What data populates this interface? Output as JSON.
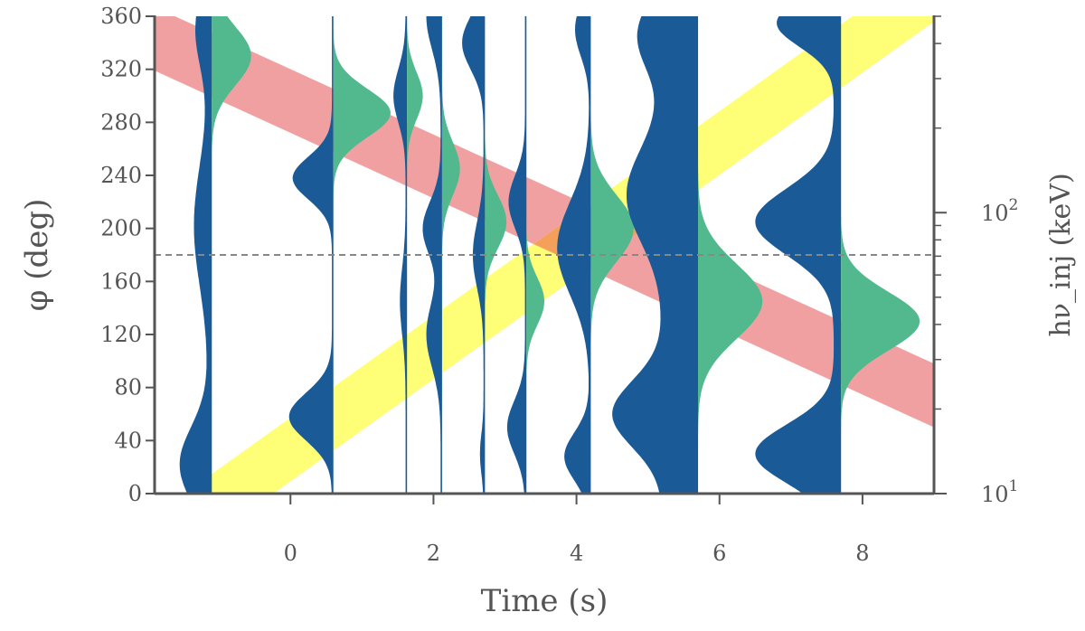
{
  "chart_data": {
    "type": "violin",
    "xlabel": "Time (s)",
    "ylabel_left": "φ (deg)",
    "ylabel_right": "hν_inj (keV)",
    "xlim": [
      -1.9,
      9.0
    ],
    "ylim": [
      0,
      360
    ],
    "x_ticks": [
      0,
      2,
      4,
      6,
      8
    ],
    "y_ticks": [
      0,
      40,
      80,
      120,
      160,
      200,
      240,
      280,
      320,
      360
    ],
    "right_axis": {
      "scale": "log",
      "lim": [
        10,
        500
      ],
      "major_ticks": [
        {
          "value": 10,
          "label": "10",
          "exp": "1"
        },
        {
          "value": 100,
          "label": "10",
          "exp": "2"
        }
      ],
      "minor_ticks": [
        20,
        30,
        40,
        50,
        60,
        70,
        80,
        90,
        200,
        300,
        400,
        500
      ]
    },
    "reference_line_y": 180,
    "colors": {
      "blue": "#1a5a96",
      "green": "#52b98f",
      "red_band": "#f0a0a0",
      "yellow_band": "#ffff77",
      "overlap": "#f5a05a",
      "axis": "#555555",
      "refline": "#888888"
    },
    "bands": [
      {
        "name": "red",
        "x": [
          -1.9,
          9.0
        ],
        "y_center": [
          343,
          74
        ],
        "width": 48
      },
      {
        "name": "yellow",
        "x": [
          -1.9,
          9.0
        ],
        "y_center": [
          -40,
          380
        ],
        "width": 48
      }
    ],
    "time_bins": [
      {
        "x_split": -1.1,
        "blue_peaks": [
          {
            "y": 22,
            "w": 0.4,
            "s": 28
          },
          {
            "y": 202,
            "w": 0.2,
            "s": 45
          },
          {
            "y": 350,
            "w": 0.18,
            "s": 28
          }
        ],
        "blue_base": 0.05,
        "green_peaks": [
          {
            "y": 330,
            "w": 0.55,
            "s": 22
          }
        ]
      },
      {
        "x_split": 0.6,
        "blue_peaks": [
          {
            "y": 238,
            "w": 0.55,
            "s": 16
          },
          {
            "y": 58,
            "w": 0.6,
            "s": 18
          }
        ],
        "blue_base": 0.02,
        "green_peaks": [
          {
            "y": 287,
            "w": 0.8,
            "s": 18
          }
        ]
      },
      {
        "x_split": 1.63,
        "blue_peaks": [
          {
            "y": 300,
            "w": 0.17,
            "s": 20
          },
          {
            "y": 145,
            "w": 0.08,
            "s": 25
          }
        ],
        "blue_base": 0.02,
        "green_peaks": [
          {
            "y": 300,
            "w": 0.22,
            "s": 18
          }
        ]
      },
      {
        "x_split": 2.12,
        "blue_peaks": [
          {
            "y": 360,
            "w": 0.2,
            "s": 25
          },
          {
            "y": 200,
            "w": 0.25,
            "s": 20
          },
          {
            "y": 120,
            "w": 0.2,
            "s": 25
          }
        ],
        "blue_base": 0.02,
        "green_peaks": [
          {
            "y": 245,
            "w": 0.25,
            "s": 20
          }
        ]
      },
      {
        "x_split": 2.72,
        "blue_peaks": [
          {
            "y": 340,
            "w": 0.3,
            "s": 20
          },
          {
            "y": 180,
            "w": 0.15,
            "s": 25
          },
          {
            "y": 30,
            "w": 0.05,
            "s": 15
          }
        ],
        "blue_base": 0.02,
        "green_peaks": [
          {
            "y": 205,
            "w": 0.3,
            "s": 20
          }
        ]
      },
      {
        "x_split": 3.3,
        "blue_peaks": [
          {
            "y": 220,
            "w": 0.23,
            "s": 20
          },
          {
            "y": 50,
            "w": 0.25,
            "s": 20
          }
        ],
        "blue_base": 0.02,
        "green_peaks": [
          {
            "y": 145,
            "w": 0.25,
            "s": 18
          }
        ]
      },
      {
        "x_split": 4.2,
        "blue_peaks": [
          {
            "y": 185,
            "w": 0.45,
            "s": 35
          },
          {
            "y": 28,
            "w": 0.35,
            "s": 18
          },
          {
            "y": 350,
            "w": 0.2,
            "s": 20
          }
        ],
        "blue_base": 0.02,
        "green_peaks": [
          {
            "y": 200,
            "w": 0.6,
            "s": 25
          }
        ]
      },
      {
        "x_split": 5.7,
        "blue_peaks": [
          {
            "y": 225,
            "w": 0.5,
            "s": 35
          },
          {
            "y": 60,
            "w": 0.7,
            "s": 25
          },
          {
            "y": 345,
            "w": 0.35,
            "s": 25
          }
        ],
        "blue_base": 0.5,
        "green_peaks": [
          {
            "y": 145,
            "w": 0.9,
            "s": 28
          }
        ]
      },
      {
        "x_split": 7.7,
        "blue_peaks": [
          {
            "y": 205,
            "w": 1.1,
            "s": 25
          },
          {
            "y": 30,
            "w": 1.1,
            "s": 22
          },
          {
            "y": 355,
            "w": 0.8,
            "s": 18
          }
        ],
        "blue_base": 0.1,
        "green_peaks": [
          {
            "y": 130,
            "w": 1.1,
            "s": 22
          }
        ]
      }
    ]
  }
}
